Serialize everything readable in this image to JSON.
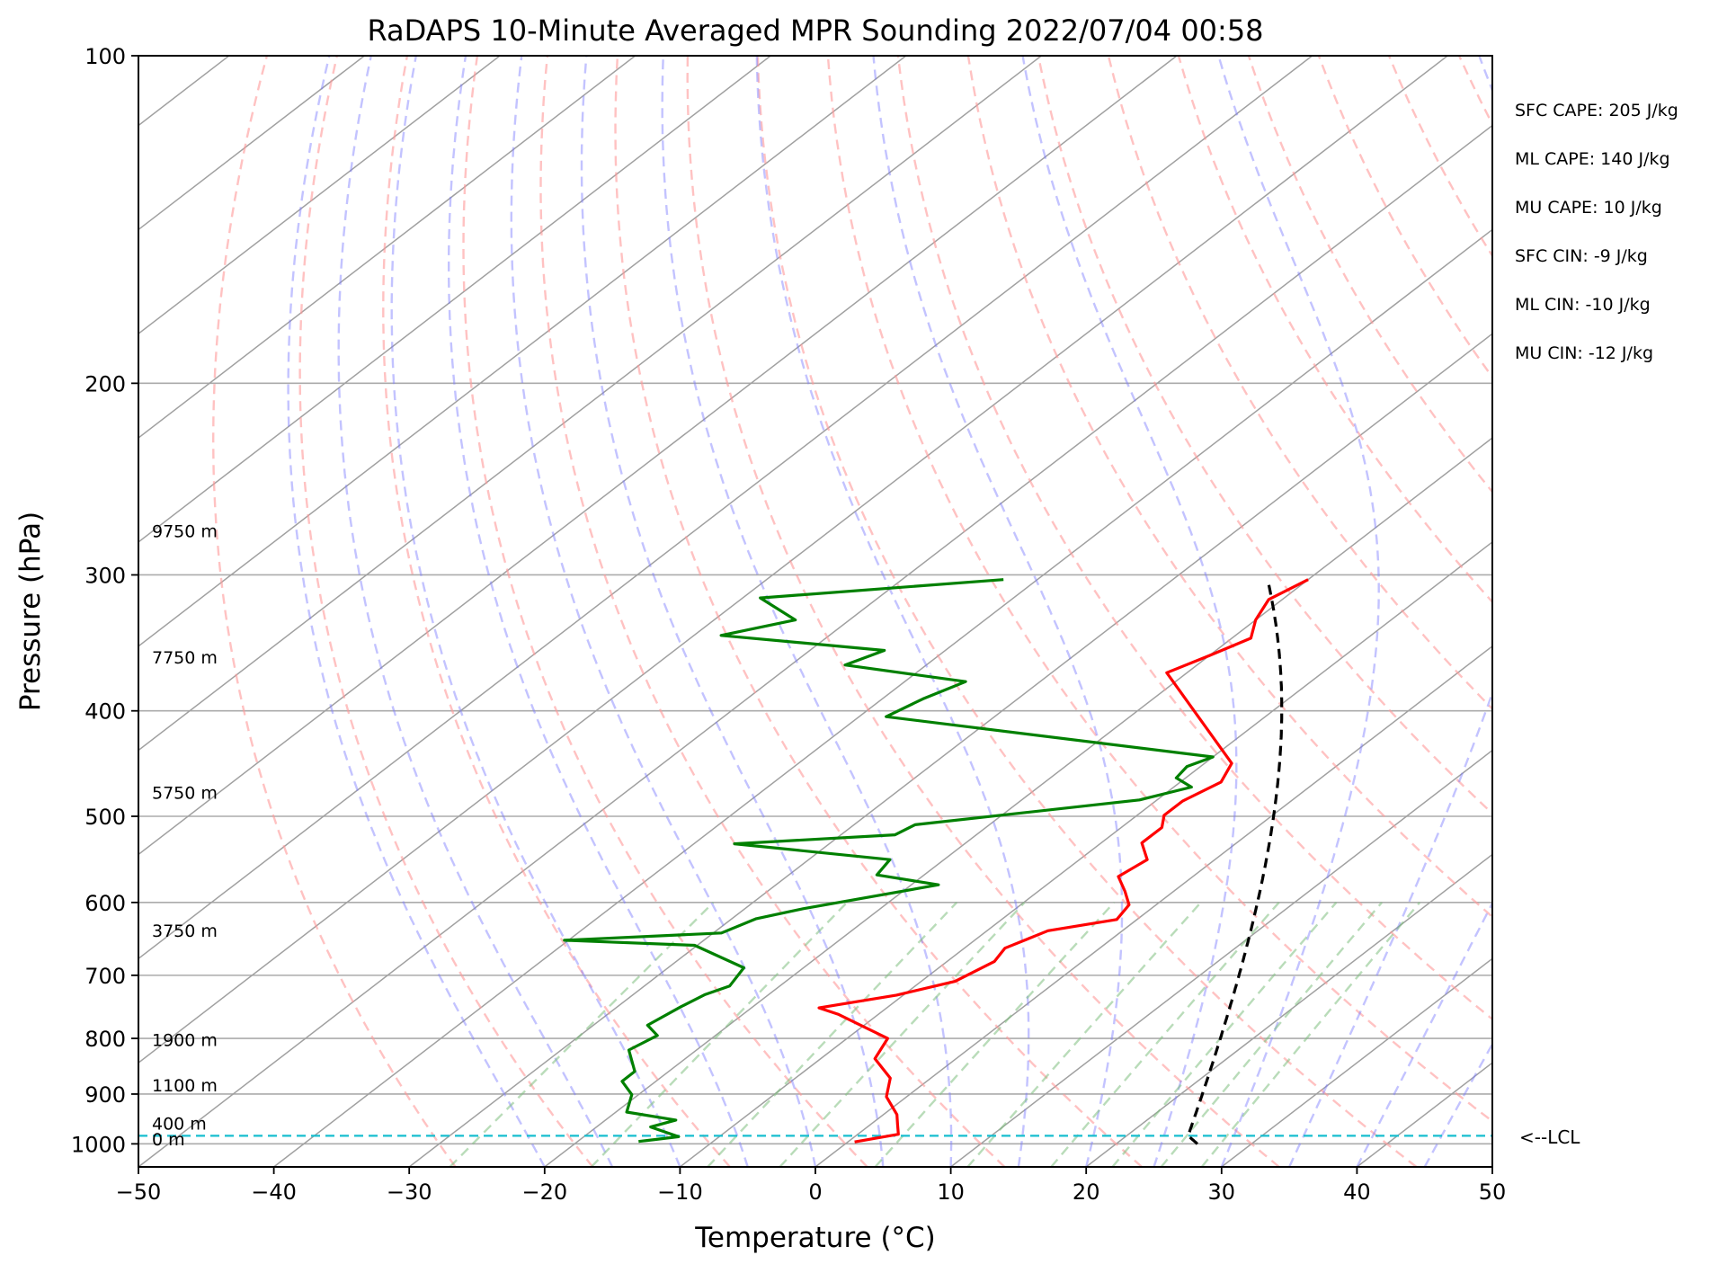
{
  "chart_data": {
    "type": "line",
    "title": "RaDAPS 10-Minute Averaged MPR Sounding 2022/07/04 00:58",
    "xlabel": "Temperature (°C)",
    "ylabel": "Pressure (hPa)",
    "xlim": [
      -50,
      50
    ],
    "ylim": [
      1050,
      100
    ],
    "y_scale": "log",
    "grid": true,
    "x_ticks": [
      -50,
      -40,
      -30,
      -20,
      -10,
      0,
      10,
      20,
      30,
      40,
      50
    ],
    "x_tick_labels": [
      "−50",
      "−40",
      "−30",
      "−20",
      "−10",
      "0",
      "10",
      "20",
      "30",
      "40",
      "50"
    ],
    "y_ticks": [
      100,
      200,
      300,
      400,
      500,
      600,
      700,
      800,
      900,
      1000
    ],
    "y_tick_labels": [
      "100",
      "200",
      "300",
      "400",
      "500",
      "600",
      "700",
      "800",
      "900",
      "1000"
    ],
    "isotherm_temps": [
      -150,
      -140,
      -130,
      -120,
      -110,
      -100,
      -90,
      -80,
      -70,
      -60,
      -50,
      -40,
      -30,
      -20,
      -10,
      0,
      10,
      20,
      30,
      40,
      50
    ],
    "dry_adiabat_thetas": [
      -30,
      -20,
      -10,
      0,
      10,
      20,
      30,
      40,
      50,
      60,
      70,
      80,
      90,
      100,
      110,
      120,
      130,
      140,
      150,
      160,
      170,
      180,
      190,
      200
    ],
    "moist_adiabat_temps": [
      -20,
      -15,
      -10,
      -5,
      0,
      5,
      10,
      15,
      20,
      25,
      30,
      35,
      40,
      45
    ],
    "mixing_ratios": [
      0.4,
      1,
      2,
      3,
      5,
      8,
      12,
      16,
      20,
      24
    ],
    "lcl_pressure": 983,
    "lcl_label": "<--LCL",
    "height_labels": [
      {
        "text": "9750 m",
        "pressure": 277
      },
      {
        "text": "7750 m",
        "pressure": 362
      },
      {
        "text": "5750 m",
        "pressure": 482
      },
      {
        "text": "3750 m",
        "pressure": 645
      },
      {
        "text": "1900 m",
        "pressure": 813
      },
      {
        "text": "1100 m",
        "pressure": 895
      },
      {
        "text": "400 m",
        "pressure": 970
      },
      {
        "text": "0 m",
        "pressure": 1003
      }
    ],
    "stats": [
      "SFC CAPE: 205 J/kg",
      "ML CAPE: 140 J/kg",
      "MU CAPE: 10 J/kg",
      "SFC CIN: -9 J/kg",
      "ML CIN: -10 J/kg",
      "MU CIN: -12 J/kg"
    ],
    "series": [
      {
        "name": "",
        "role": "temperature",
        "color": "#ff0000",
        "points": [
          [
            -20,
            303
          ],
          [
            -21,
            316
          ],
          [
            -20,
            330
          ],
          [
            -18.6,
            343
          ],
          [
            -20,
            356
          ],
          [
            -21.5,
            369
          ],
          [
            -8,
            447
          ],
          [
            -7,
            465
          ],
          [
            -8,
            484
          ],
          [
            -8,
            499
          ],
          [
            -7,
            512
          ],
          [
            -7,
            529
          ],
          [
            -5,
            548
          ],
          [
            -5.5,
            568
          ],
          [
            -3.6,
            586
          ],
          [
            -2,
            603
          ],
          [
            -1.5,
            622
          ],
          [
            -5.5,
            637
          ],
          [
            -7,
            661
          ],
          [
            -6.5,
            680
          ],
          [
            -7.5,
            709
          ],
          [
            -10.5,
            730
          ],
          [
            -15,
            750
          ],
          [
            -13,
            760
          ],
          [
            -7,
            800
          ],
          [
            -6,
            835
          ],
          [
            -3,
            870
          ],
          [
            -1.5,
            905
          ],
          [
            1,
            940
          ],
          [
            2,
            960
          ],
          [
            3,
            980
          ],
          [
            0.5,
            996
          ]
        ]
      },
      {
        "name": "",
        "role": "dewpoint",
        "color": "#008000",
        "points": [
          [
            -42.5,
            303
          ],
          [
            -58.7,
            315
          ],
          [
            -54,
            330
          ],
          [
            -58,
            341
          ],
          [
            -44.5,
            352
          ],
          [
            -46,
            363
          ],
          [
            -35.5,
            376
          ],
          [
            -37,
            390
          ],
          [
            -38,
            405
          ],
          [
            -10,
            441
          ],
          [
            -11,
            450
          ],
          [
            -10.7,
            461
          ],
          [
            -8.7,
            470
          ],
          [
            -11.3,
            483
          ],
          [
            -25.5,
            509
          ],
          [
            -26,
            520
          ],
          [
            -37,
            530
          ],
          [
            -24,
            548
          ],
          [
            -23.5,
            566
          ],
          [
            -18,
            578
          ],
          [
            -25.7,
            608
          ],
          [
            -28.2,
            621
          ],
          [
            -29.4,
            640
          ],
          [
            -40.3,
            650
          ],
          [
            -30.2,
            657
          ],
          [
            -24.4,
            689
          ],
          [
            -23.7,
            716
          ],
          [
            -24.7,
            729
          ],
          [
            -25.3,
            748
          ],
          [
            -26,
            778
          ],
          [
            -24.3,
            795
          ],
          [
            -25,
            820
          ],
          [
            -22.5,
            858
          ],
          [
            -22.5,
            876
          ],
          [
            -20.5,
            901
          ],
          [
            -19.2,
            935
          ],
          [
            -14.8,
            951
          ],
          [
            -16,
            965
          ],
          [
            -13,
            985
          ],
          [
            -14.5,
            991
          ],
          [
            -15.5,
            995
          ]
        ]
      },
      {
        "name": "",
        "role": "parcel",
        "color": "#000000",
        "dashed": true,
        "surface_temperature": 26,
        "surface_pressure": 1000,
        "lcl_pressure": 983,
        "top_pressure": 302
      }
    ]
  }
}
